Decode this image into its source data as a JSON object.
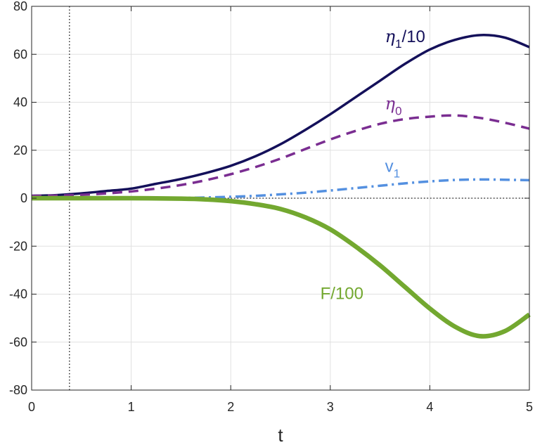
{
  "chart_data": {
    "type": "line",
    "xlabel": "t",
    "ylabel": "",
    "title": "",
    "xlim": [
      0,
      5
    ],
    "ylim": [
      -80,
      80
    ],
    "xticks": [
      "0",
      "1",
      "2",
      "3",
      "4",
      "5"
    ],
    "yticks": [
      "-80",
      "-60",
      "-40",
      "-20",
      "0",
      "20",
      "40",
      "60",
      "80"
    ],
    "grid": true,
    "vline_x": 0.38,
    "hline_y": 0,
    "series": [
      {
        "color": "#14105a",
        "style": "solid",
        "x": [
          0,
          0.25,
          0.5,
          0.75,
          1.0,
          1.25,
          1.5,
          1.75,
          2.0,
          2.25,
          2.5,
          2.75,
          3.0,
          3.25,
          3.5,
          3.75,
          4.0,
          4.25,
          4.5,
          4.75,
          5.0
        ],
        "y": [
          1,
          1.3,
          2,
          3,
          4,
          6,
          8,
          10.5,
          13.5,
          17.5,
          22.5,
          28.5,
          35,
          42,
          49,
          56,
          62,
          66,
          68,
          67,
          63
        ]
      },
      {
        "color": "#7a2d91",
        "style": "dashed",
        "x": [
          0,
          0.25,
          0.5,
          0.75,
          1.0,
          1.25,
          1.5,
          1.75,
          2.0,
          2.25,
          2.5,
          2.75,
          3.0,
          3.25,
          3.5,
          3.75,
          4.0,
          4.25,
          4.5,
          4.75,
          5.0
        ],
        "y": [
          1,
          1.1,
          1.4,
          2,
          2.8,
          4,
          5.5,
          7.5,
          10,
          13,
          16.5,
          20.5,
          24.5,
          28,
          31,
          33,
          34,
          34.5,
          33.5,
          31.5,
          29
        ]
      },
      {
        "color": "#5490e0",
        "style": "dashdot",
        "x": [
          0,
          0.5,
          1.0,
          1.5,
          1.75,
          2.0,
          2.25,
          2.5,
          2.75,
          3.0,
          3.25,
          3.5,
          3.75,
          4.0,
          4.25,
          4.5,
          4.75,
          5.0
        ],
        "y": [
          0,
          0,
          0,
          0.1,
          0.3,
          0.6,
          1,
          1.6,
          2.3,
          3.2,
          4.2,
          5.2,
          6.2,
          7,
          7.6,
          7.8,
          7.7,
          7.5
        ]
      },
      {
        "color": "#73a830",
        "style": "solid-thick",
        "x": [
          0,
          0.5,
          1.0,
          1.5,
          1.75,
          2.0,
          2.25,
          2.5,
          2.75,
          3.0,
          3.25,
          3.5,
          3.75,
          4.0,
          4.25,
          4.5,
          4.75,
          5.0
        ],
        "y": [
          0,
          0,
          0,
          -0.2,
          -0.5,
          -1.2,
          -2.5,
          -4.5,
          -8,
          -13,
          -20,
          -28,
          -37,
          -46,
          -53.5,
          -57.5,
          -55.5,
          -48.5
        ]
      }
    ],
    "annotations": [
      {
        "main": "η",
        "sub": "1",
        "tail": "/10",
        "color": "#14105a",
        "x": 3.55,
        "y": 65
      },
      {
        "main": "η",
        "sub": "0",
        "tail": "",
        "color": "#7a2d91",
        "x": 3.55,
        "y": 37
      },
      {
        "main": "v",
        "sub": "1",
        "tail": "",
        "color": "#5490e0",
        "x": 3.55,
        "y": 11
      },
      {
        "main": "F/100",
        "sub": "",
        "tail": "",
        "color": "#73a830",
        "x": 2.9,
        "y": -42
      }
    ]
  }
}
